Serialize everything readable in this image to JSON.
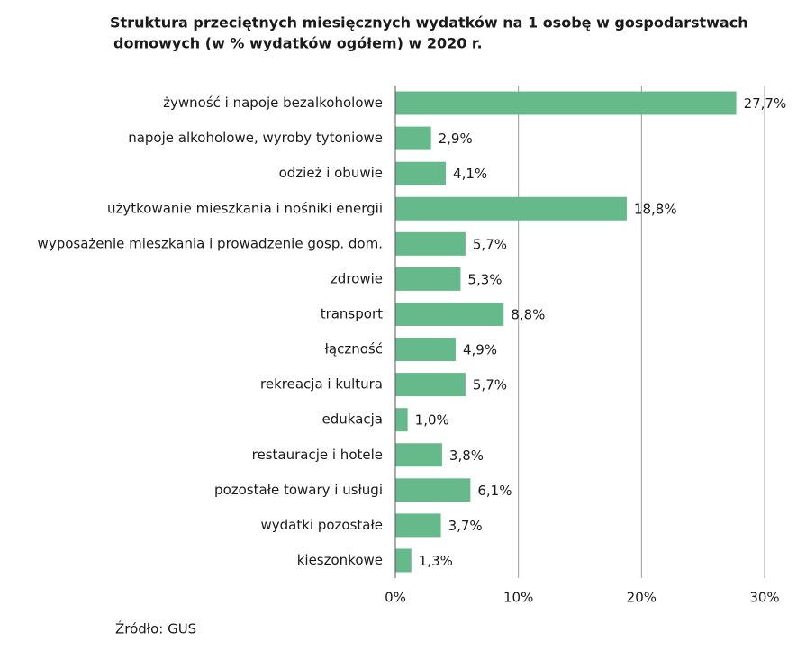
{
  "chart_data": {
    "type": "bar",
    "orientation": "horizontal",
    "title": [
      "Struktura przeciętnych miesięcznych wydatków na 1 osobę w gospodarstwach",
      "domowych (w % wydatków ogółem) w 2020 r."
    ],
    "categories": [
      "żywność i napoje bezalkoholowe",
      "napoje alkoholowe, wyroby tytoniowe",
      "odzież i obuwie",
      "użytkowanie mieszkania i nośniki energii",
      "wyposażenie mieszkania i prowadzenie gosp. dom.",
      "zdrowie",
      "transport",
      "łączność",
      "rekreacja i kultura",
      "edukacja",
      "restauracje i hotele",
      "pozostałe towary i usługi",
      "wydatki pozostałe",
      "kieszonkowe"
    ],
    "values": [
      27.7,
      2.9,
      4.1,
      18.8,
      5.7,
      5.3,
      8.8,
      4.9,
      5.7,
      1.0,
      3.8,
      6.1,
      3.7,
      1.3
    ],
    "value_labels": [
      "27,7%",
      "2,9%",
      "4,1%",
      "18,8%",
      "5,7%",
      "5,3%",
      "8,8%",
      "4,9%",
      "5,7%",
      "1,0%",
      "3,8%",
      "6,1%",
      "3,7%",
      "1,3%"
    ],
    "color": "#66b98a",
    "xlim": [
      0,
      30
    ],
    "xticks": [
      {
        "value": 0,
        "label": "0%"
      },
      {
        "value": 10,
        "label": "10%"
      },
      {
        "value": 20,
        "label": "20%"
      },
      {
        "value": 30,
        "label": "30%"
      }
    ],
    "grid": true,
    "source": "Źródło: GUS"
  }
}
